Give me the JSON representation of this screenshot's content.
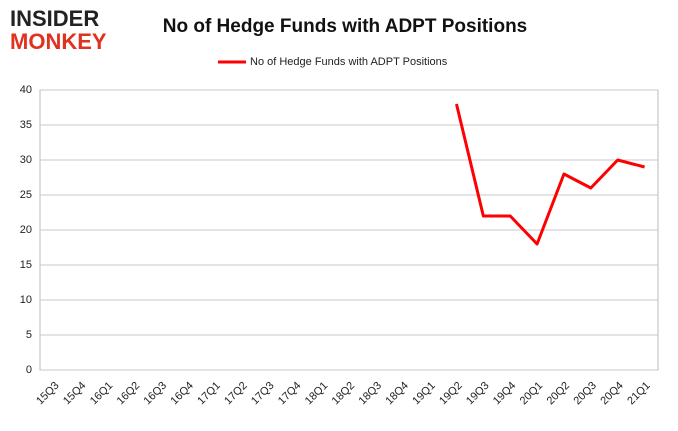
{
  "logo": {
    "line1": "INSIDER",
    "line2": "MONKEY"
  },
  "chart_data": {
    "type": "line",
    "title": "No of Hedge Funds with ADPT Positions",
    "categories": [
      "15Q3",
      "15Q4",
      "16Q1",
      "16Q2",
      "16Q3",
      "16Q4",
      "17Q1",
      "17Q2",
      "17Q3",
      "17Q4",
      "18Q1",
      "18Q2",
      "18Q3",
      "18Q4",
      "19Q1",
      "19Q2",
      "19Q3",
      "19Q4",
      "20Q1",
      "20Q2",
      "20Q3",
      "20Q4",
      "21Q1"
    ],
    "series": [
      {
        "name": "No of Hedge Funds with ADPT Positions",
        "color": "#ff0000",
        "values": [
          null,
          null,
          null,
          null,
          null,
          null,
          null,
          null,
          null,
          null,
          null,
          null,
          null,
          null,
          null,
          38,
          22,
          22,
          18,
          28,
          26,
          30,
          29
        ]
      }
    ],
    "ylim": [
      0,
      40
    ],
    "yticks": [
      0,
      5,
      10,
      15,
      20,
      25,
      30,
      35,
      40
    ],
    "grid": true,
    "legend": "top"
  }
}
